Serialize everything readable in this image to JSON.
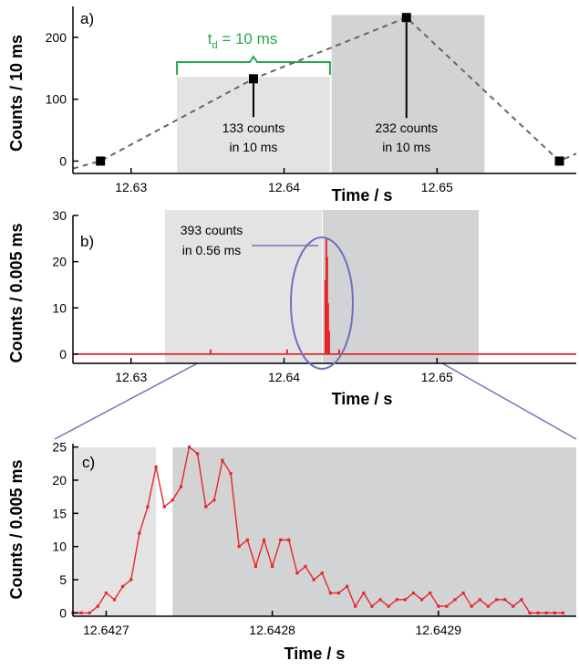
{
  "colors": {
    "shade_left": "#e3e3e3",
    "shade_right": "#d2d3d5",
    "red": "#e8262a",
    "blue": "#6f72b8",
    "green": "#22a84a",
    "dash": "#666666",
    "axis": "#000000"
  },
  "chart_data": [
    {
      "panel": "a)",
      "type": "line",
      "style": "dashed line with square markers",
      "xlabel": "Time / s",
      "ylabel": "Counts / 10 ms",
      "xlim": [
        12.6262,
        12.6591
      ],
      "ylim": [
        -20,
        250
      ],
      "xticks": [
        "12.63",
        "12.64",
        "12.65"
      ],
      "yticks": [
        "0",
        "100",
        "200"
      ],
      "x": [
        12.628,
        12.638,
        12.648,
        12.658
      ],
      "y": [
        0,
        133,
        232,
        0
      ],
      "shaded_regions": [
        {
          "x": [
            12.633,
            12.643
          ],
          "y_top": 136,
          "color": "shade_left"
        },
        {
          "x": [
            12.6431,
            12.6531
          ],
          "y_top": 236,
          "color": "shade_right"
        }
      ],
      "annotations": [
        {
          "text": "t",
          "sub": "d",
          "rest": " = 10 ms",
          "color": "green"
        },
        {
          "text": [
            "133 counts",
            "in 10 ms"
          ]
        },
        {
          "text": [
            "232 counts",
            "in 10 ms"
          ]
        }
      ]
    },
    {
      "panel": "b)",
      "type": "line",
      "xlabel": "Time / s",
      "ylabel": "Counts / 0.005 ms",
      "xlim": [
        12.6262,
        12.6591
      ],
      "ylim": [
        -2,
        30
      ],
      "xticks": [
        "12.63",
        "12.64",
        "12.65"
      ],
      "yticks": [
        "0",
        "10",
        "20",
        "30"
      ],
      "spikes": [
        {
          "x": 12.6352,
          "y": 1
        },
        {
          "x": 12.6402,
          "y": 1
        },
        {
          "x": 12.6427,
          "y": 16
        },
        {
          "x": 12.64276,
          "y": 25
        },
        {
          "x": 12.64282,
          "y": 21
        },
        {
          "x": 12.64288,
          "y": 11
        },
        {
          "x": 12.64295,
          "y": 5
        },
        {
          "x": 12.6436,
          "y": 1
        }
      ],
      "annotations": [
        {
          "text": [
            "393 counts",
            "in 0.56 ms"
          ],
          "color": "blue"
        }
      ]
    },
    {
      "panel": "c)",
      "type": "line",
      "style": "line with small square markers",
      "xlabel": "Time / s",
      "ylabel": "Counts / 0.005 ms",
      "xlim": [
        12.64268,
        12.642983
      ],
      "ylim": [
        -0.5,
        25.5
      ],
      "xticks": [
        "12.6427",
        "12.6428",
        "12.6429"
      ],
      "yticks": [
        "0",
        "5",
        "10",
        "15",
        "20",
        "25"
      ],
      "shaded_regions": [
        {
          "x": [
            12.64268,
            12.64273
          ],
          "color": "shade_left"
        },
        {
          "x": [
            12.64274,
            12.642983
          ],
          "color": "shade_right"
        }
      ],
      "x0": 12.64268,
      "dx": 5e-06,
      "y": [
        0,
        0,
        0,
        1,
        3,
        2,
        4,
        5,
        12,
        16,
        22,
        16,
        17,
        19,
        25,
        24,
        16,
        17,
        23,
        21,
        10,
        11,
        7,
        11,
        7,
        11,
        11,
        6,
        7,
        5,
        6,
        3,
        3,
        4,
        1,
        3,
        1,
        2,
        1,
        2,
        2,
        3,
        2,
        3,
        1,
        1,
        2,
        3,
        1,
        2,
        1,
        2,
        2,
        1,
        2,
        0,
        0,
        0,
        0,
        0
      ]
    }
  ]
}
